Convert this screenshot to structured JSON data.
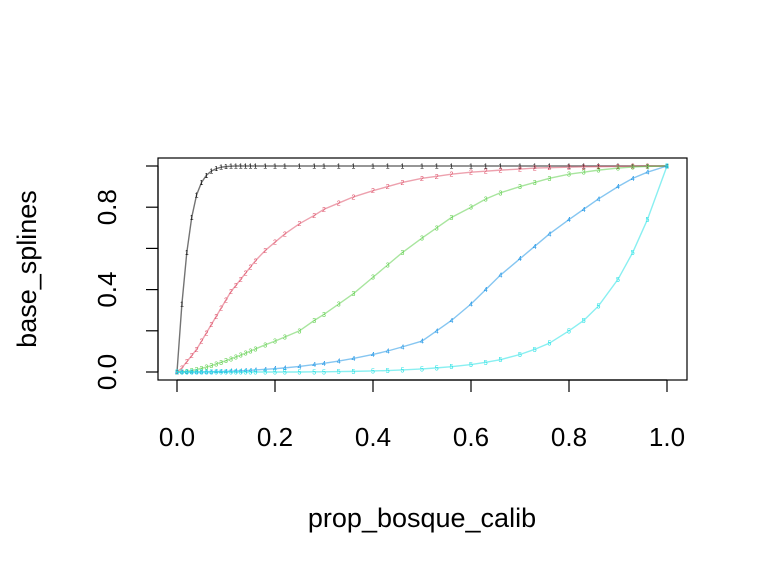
{
  "chart_data": {
    "type": "scatter",
    "title": "",
    "xlabel": "prop_bosque_calib",
    "ylabel": "base_splines",
    "xlim": [
      0.0,
      1.0
    ],
    "ylim": [
      0.0,
      1.0
    ],
    "x_ticks": [
      "0.0",
      "0.2",
      "0.4",
      "0.6",
      "0.8",
      "1.0"
    ],
    "y_ticks": [
      "0.0",
      "0.4",
      "0.8"
    ],
    "grid": false,
    "legend": "none",
    "point_symbol": "series index digit (1-5)",
    "x": [
      0.0,
      0.01,
      0.02,
      0.03,
      0.04,
      0.05,
      0.06,
      0.07,
      0.08,
      0.09,
      0.1,
      0.11,
      0.12,
      0.13,
      0.14,
      0.15,
      0.16,
      0.18,
      0.2,
      0.22,
      0.25,
      0.28,
      0.3,
      0.33,
      0.36,
      0.4,
      0.43,
      0.46,
      0.5,
      0.53,
      0.56,
      0.6,
      0.63,
      0.66,
      0.7,
      0.73,
      0.76,
      0.8,
      0.83,
      0.86,
      0.9,
      0.93,
      0.96,
      1.0
    ],
    "series": [
      {
        "label": "1",
        "color": "#000000",
        "values": [
          0.0,
          0.33,
          0.58,
          0.75,
          0.86,
          0.92,
          0.955,
          0.975,
          0.987,
          0.994,
          0.997,
          0.999,
          1.0,
          1.0,
          1.0,
          1.0,
          1.0,
          1.0,
          1.0,
          1.0,
          1.0,
          1.0,
          1.0,
          1.0,
          1.0,
          1.0,
          1.0,
          1.0,
          1.0,
          1.0,
          1.0,
          1.0,
          1.0,
          1.0,
          1.0,
          1.0,
          1.0,
          1.0,
          1.0,
          1.0,
          1.0,
          1.0,
          1.0,
          1.0
        ]
      },
      {
        "label": "2",
        "color": "#DF536B",
        "values": [
          0.0,
          0.02,
          0.05,
          0.08,
          0.11,
          0.15,
          0.19,
          0.23,
          0.27,
          0.31,
          0.35,
          0.39,
          0.42,
          0.45,
          0.48,
          0.51,
          0.54,
          0.59,
          0.63,
          0.67,
          0.72,
          0.76,
          0.79,
          0.82,
          0.85,
          0.88,
          0.9,
          0.92,
          0.94,
          0.95,
          0.96,
          0.97,
          0.975,
          0.98,
          0.985,
          0.99,
          0.992,
          0.994,
          0.996,
          0.997,
          0.998,
          0.999,
          1.0,
          1.0
        ]
      },
      {
        "label": "3",
        "color": "#61D04F",
        "values": [
          0.0,
          0.001,
          0.003,
          0.007,
          0.012,
          0.018,
          0.024,
          0.031,
          0.039,
          0.047,
          0.055,
          0.064,
          0.073,
          0.082,
          0.092,
          0.102,
          0.112,
          0.132,
          0.15,
          0.17,
          0.2,
          0.25,
          0.28,
          0.33,
          0.38,
          0.46,
          0.52,
          0.58,
          0.65,
          0.7,
          0.75,
          0.8,
          0.84,
          0.87,
          0.9,
          0.92,
          0.94,
          0.96,
          0.97,
          0.98,
          0.99,
          0.995,
          0.998,
          1.0
        ]
      },
      {
        "label": "4",
        "color": "#2297E6",
        "values": [
          0.0,
          0.0,
          0.0,
          0.0,
          0.0,
          0.0,
          0.001,
          0.001,
          0.002,
          0.002,
          0.003,
          0.004,
          0.005,
          0.006,
          0.007,
          0.008,
          0.01,
          0.013,
          0.016,
          0.02,
          0.027,
          0.036,
          0.042,
          0.053,
          0.066,
          0.085,
          0.102,
          0.122,
          0.15,
          0.2,
          0.25,
          0.33,
          0.4,
          0.47,
          0.55,
          0.61,
          0.67,
          0.74,
          0.79,
          0.84,
          0.9,
          0.94,
          0.97,
          1.0
        ]
      },
      {
        "label": "5",
        "color": "#28E2E5",
        "values": [
          0.0,
          0.0,
          0.0,
          0.0,
          0.0,
          0.0,
          0.0,
          0.0,
          0.0,
          0.0,
          0.0,
          0.0,
          0.0,
          0.0,
          0.0,
          0.0,
          0.0,
          0.0,
          0.0,
          0.0,
          0.0,
          0.001,
          0.001,
          0.002,
          0.003,
          0.005,
          0.007,
          0.01,
          0.015,
          0.02,
          0.026,
          0.036,
          0.047,
          0.06,
          0.085,
          0.11,
          0.14,
          0.2,
          0.25,
          0.32,
          0.45,
          0.58,
          0.74,
          1.0
        ]
      }
    ]
  }
}
